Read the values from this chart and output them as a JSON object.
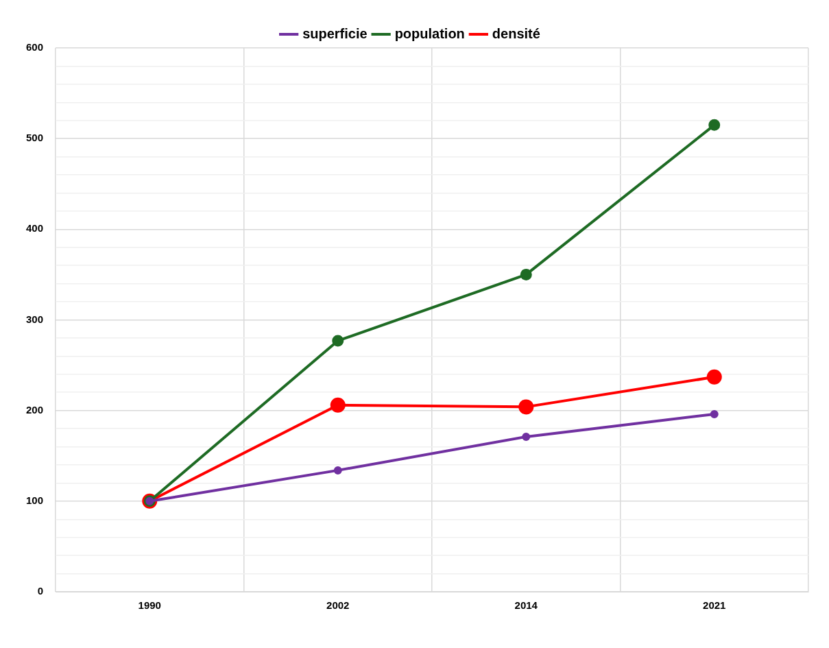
{
  "chart_data": {
    "type": "line",
    "categories": [
      "1990",
      "2002",
      "2014",
      "2021"
    ],
    "series": [
      {
        "name": "superficie",
        "color": "#7030a0",
        "values": [
          100,
          134,
          171,
          196
        ]
      },
      {
        "name": "population",
        "color": "#1e6b24",
        "values": [
          100,
          277,
          350,
          515
        ]
      },
      {
        "name": "densité",
        "color": "#ff0000",
        "values": [
          100,
          206,
          204,
          237
        ]
      }
    ],
    "ylim": [
      0,
      600
    ],
    "yticks": [
      0,
      {
        "value": 20,
        "label": null
      },
      {
        "value": 40,
        "label": null
      },
      {
        "value": 60,
        "label": null
      },
      {
        "value": 80,
        "label": null
      },
      100,
      {
        "value": 120,
        "label": null
      },
      {
        "value": 140,
        "label": null
      },
      {
        "value": 160,
        "label": null
      },
      {
        "value": 180,
        "label": null
      },
      200,
      {
        "value": 220,
        "label": null
      },
      {
        "value": 240,
        "label": null
      },
      {
        "value": 260,
        "label": null
      },
      {
        "value": 280,
        "label": null
      },
      300,
      {
        "value": 320,
        "label": null
      },
      {
        "value": 340,
        "label": null
      },
      {
        "value": 360,
        "label": null
      },
      {
        "value": 380,
        "label": null
      },
      400,
      {
        "value": 420,
        "label": null
      },
      {
        "value": 440,
        "label": null
      },
      {
        "value": 460,
        "label": null
      },
      {
        "value": 480,
        "label": null
      },
      500,
      {
        "value": 520,
        "label": null
      },
      {
        "value": 540,
        "label": null
      },
      {
        "value": 560,
        "label": null
      },
      {
        "value": 580,
        "label": null
      },
      600
    ],
    "grid": true,
    "legend": "top",
    "marker": "circle",
    "line_style": "solid"
  }
}
